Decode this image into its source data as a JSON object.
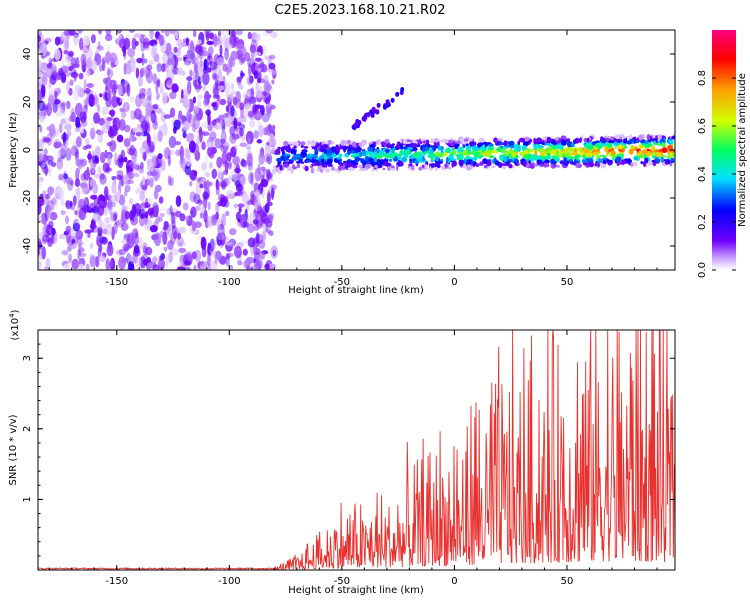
{
  "title": "C2E5.2023.168.10.21.R02",
  "chart_data": [
    {
      "type": "heatmap",
      "xlabel": "Height of straight line (km)",
      "ylabel": "Frequency (Hz)",
      "xlim": [
        -185,
        98
      ],
      "ylim": [
        -50,
        50
      ],
      "xticks": [
        -150,
        -100,
        -50,
        0,
        50
      ],
      "yticks": [
        -40,
        -20,
        0,
        20,
        40
      ],
      "colorbar": {
        "label": "Normalized spectral amplitude",
        "range": [
          0,
          1
        ],
        "ticks": [
          "0.0",
          "0.2",
          "0.4",
          "0.6",
          "0.8"
        ],
        "colors": [
          "#ffffff",
          "#c8a0ff",
          "#7000ff",
          "#0000ff",
          "#00e0ff",
          "#00ff60",
          "#d0ff00",
          "#ffa000",
          "#ff0000",
          "#ff0080"
        ]
      },
      "regions": [
        {
          "name": "noise",
          "x": [
            -185,
            -80
          ],
          "freq": [
            -50,
            50
          ],
          "amplitude": 0.15
        },
        {
          "name": "signal",
          "x": [
            -80,
            98
          ],
          "center_freq_start": -3,
          "center_freq_end": 0,
          "bandwidth_hz": 6,
          "amplitude_start": 0.3,
          "amplitude_end": 0.9
        },
        {
          "name": "harmonic",
          "x": [
            -45,
            -22
          ],
          "freq_start": 10,
          "freq_end": 25,
          "amplitude": 0.2
        }
      ]
    },
    {
      "type": "line",
      "xlabel": "Height of straight line (km)",
      "ylabel": "SNR (10 * v/v)",
      "scale_label": "(x10",
      "scale_exp": "4",
      "xlim": [
        -185,
        98
      ],
      "ylim": [
        0,
        3.4
      ],
      "xticks": [
        -150,
        -100,
        -50,
        0,
        50
      ],
      "yticks": [
        1,
        2,
        3
      ],
      "color": "#e8312e",
      "series": [
        {
          "name": "SNR",
          "x_start": -185,
          "x_end": 98,
          "envelope": [
            {
              "x": -185,
              "y": 0.02
            },
            {
              "x": -80,
              "y": 0.02
            },
            {
              "x": -70,
              "y": 0.15
            },
            {
              "x": -60,
              "y": 0.4
            },
            {
              "x": -50,
              "y": 0.6
            },
            {
              "x": -30,
              "y": 0.7
            },
            {
              "x": -20,
              "y": 0.9
            },
            {
              "x": -10,
              "y": 1.2
            },
            {
              "x": 0,
              "y": 1.2
            },
            {
              "x": 20,
              "y": 1.8
            },
            {
              "x": 40,
              "y": 2.0
            },
            {
              "x": 60,
              "y": 2.3
            },
            {
              "x": 75,
              "y": 2.5
            },
            {
              "x": 98,
              "y": 2.2
            }
          ]
        }
      ]
    }
  ]
}
